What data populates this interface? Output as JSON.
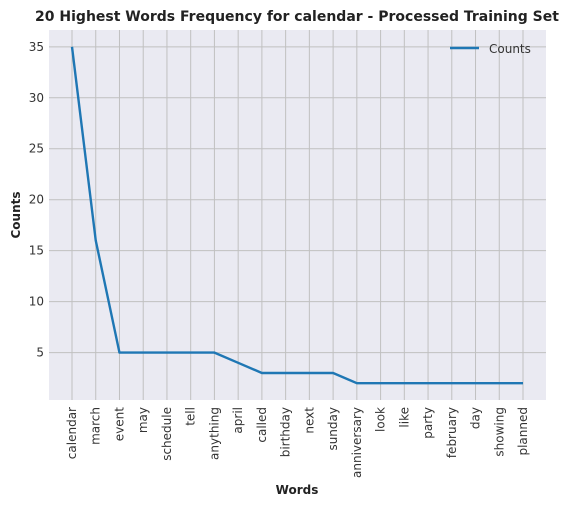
{
  "chart_data": {
    "type": "line",
    "title": "20 Highest Words Frequency for calendar - Processed Training Set",
    "xlabel": "Words",
    "ylabel": "Counts",
    "categories": [
      "calendar",
      "march",
      "event",
      "may",
      "schedule",
      "tell",
      "anything",
      "april",
      "called",
      "birthday",
      "next",
      "sunday",
      "anniversary",
      "look",
      "like",
      "party",
      "february",
      "day",
      "showing",
      "planned"
    ],
    "series": [
      {
        "name": "Counts",
        "values": [
          35,
          16,
          5,
          5,
          5,
          5,
          5,
          4,
          3,
          3,
          3,
          3,
          2,
          2,
          2,
          2,
          2,
          2,
          2,
          2
        ]
      }
    ],
    "yticks": [
      5,
      10,
      15,
      20,
      25,
      30,
      35
    ],
    "ylim": [
      0.35,
      36.65
    ],
    "grid": true,
    "legend": "top-right",
    "colors": {
      "line": "#1f77b4",
      "plot_bg": "#eaeaf2",
      "grid": "#c0c0c0"
    }
  }
}
